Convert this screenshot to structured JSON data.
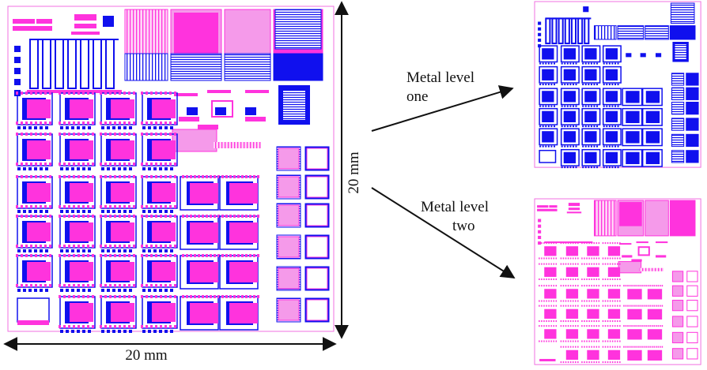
{
  "figure": {
    "width_label": "20 mm",
    "height_label": "20 mm",
    "metal_one_label_line1": "Metal level",
    "metal_one_label_line2": "one",
    "metal_two_label_line1": "Metal level",
    "metal_two_label_line2": "two"
  },
  "colors": {
    "magenta": "#ff33dd",
    "pink_light": "#f59aea",
    "blue": "#1010ee",
    "blue_dark": "#0000aa",
    "outline": "#f070e0",
    "arrow": "#111111"
  },
  "icons": {
    "arrow": "arrow-icon",
    "double_arrow": "double-arrow-icon"
  }
}
